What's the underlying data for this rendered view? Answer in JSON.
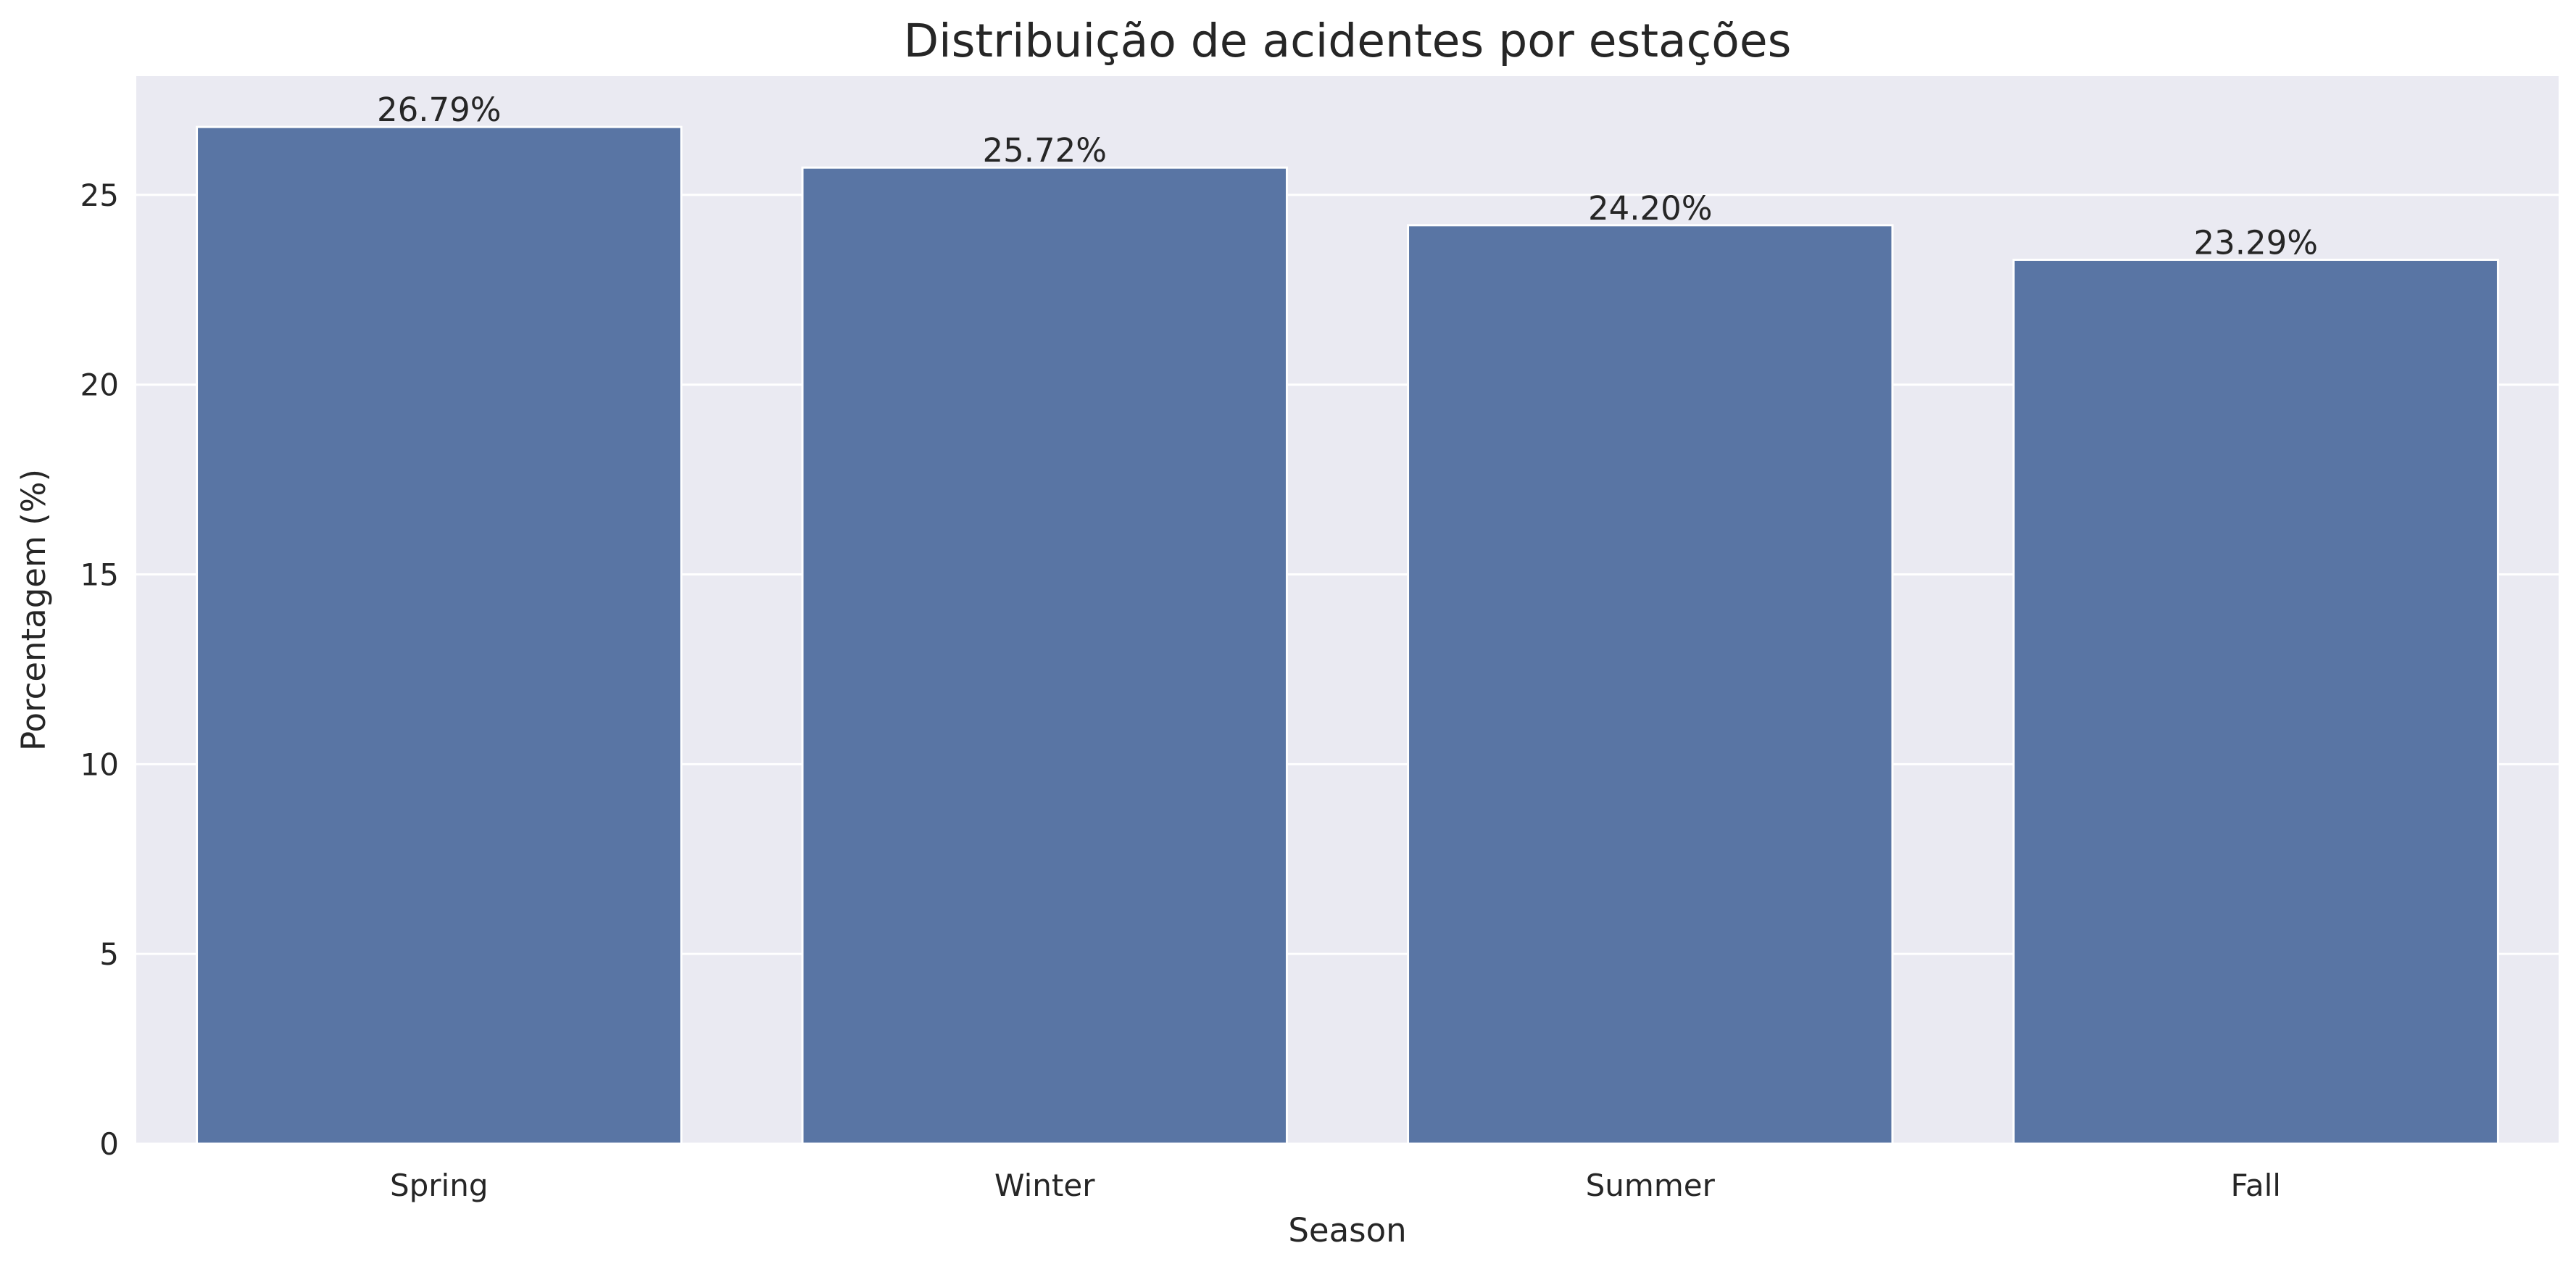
{
  "chart_data": {
    "type": "bar",
    "title": "Distribuição de acidentes por estações",
    "xlabel": "Season",
    "ylabel": "Porcentagem (%)",
    "categories": [
      "Spring",
      "Winter",
      "Summer",
      "Fall"
    ],
    "values": [
      26.79,
      25.72,
      24.2,
      23.29
    ],
    "data_labels": [
      "26.79%",
      "25.72%",
      "24.20%",
      "23.29%"
    ],
    "yticks": [
      0,
      5,
      10,
      15,
      20,
      25
    ],
    "ylim": [
      0,
      28.13
    ],
    "grid": true,
    "legend": "none",
    "colors": {
      "bar": "#5975a4",
      "plot_background": "#eaeaf2",
      "grid": "#ffffff",
      "text": "#262626"
    }
  }
}
